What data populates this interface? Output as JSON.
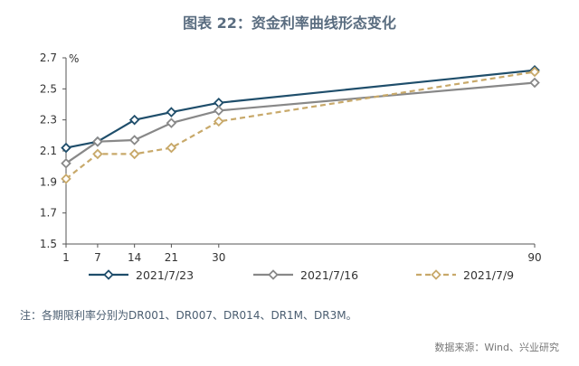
{
  "title": "图表 22：资金利率曲线形态变化",
  "note": "注：各期限利率分别为DR001、DR007、DR014、DR1M、DR3M。",
  "source": "数据来源：Wind、兴业研究",
  "chart_data": {
    "type": "line",
    "x": [
      1,
      7,
      14,
      21,
      30,
      90
    ],
    "x_tick_labels": [
      "1",
      "7",
      "14",
      "21",
      "30",
      "90"
    ],
    "ylim": [
      1.5,
      2.7
    ],
    "y_ticks": [
      1.5,
      1.7,
      1.9,
      2.1,
      2.3,
      2.5,
      2.7
    ],
    "y_tick_labels": [
      "1.5",
      "1.7",
      "1.9",
      "2.1",
      "2.3",
      "2.5",
      "2.7"
    ],
    "y_unit": "%",
    "grid": false,
    "legend_position": "bottom",
    "series": [
      {
        "name": "2021/7/23",
        "values": [
          2.12,
          2.16,
          2.3,
          2.35,
          2.41,
          2.62
        ],
        "color": "#1f4e6b",
        "style": "solid",
        "marker": "diamond"
      },
      {
        "name": "2021/7/16",
        "values": [
          2.02,
          2.16,
          2.17,
          2.28,
          2.36,
          2.54
        ],
        "color": "#888888",
        "style": "solid",
        "marker": "diamond"
      },
      {
        "name": "2021/7/9",
        "values": [
          1.92,
          2.08,
          2.08,
          2.12,
          2.29,
          2.61
        ],
        "color": "#c8a96a",
        "style": "dashed",
        "marker": "diamond"
      }
    ]
  }
}
